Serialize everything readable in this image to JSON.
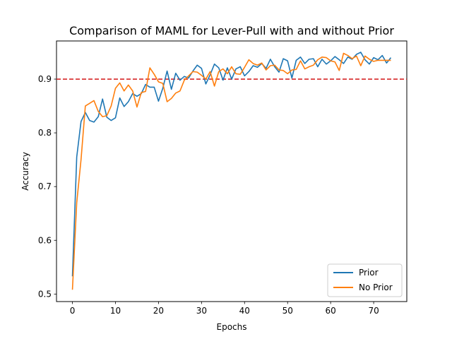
{
  "chart_data": {
    "type": "line",
    "title": "Comparison of MAML for Lever-Pull with and without Prior",
    "xlabel": "Epochs",
    "ylabel": "Accuracy",
    "xlim": [
      -3.7,
      77.7
    ],
    "ylim": [
      0.486,
      0.971
    ],
    "xticks": [
      0,
      10,
      20,
      30,
      40,
      50,
      60,
      70
    ],
    "yticks": [
      0.5,
      0.6,
      0.7,
      0.8,
      0.9
    ],
    "ytick_labels": [
      "0.5",
      "0.6",
      "0.7",
      "0.8",
      "0.9"
    ],
    "grid": false,
    "legend_position": "lower-right",
    "reference_line": {
      "y": 0.9,
      "color": "#d62728",
      "style": "dashed"
    },
    "x": [
      0,
      1,
      2,
      3,
      4,
      5,
      6,
      7,
      8,
      9,
      10,
      11,
      12,
      13,
      14,
      15,
      16,
      17,
      18,
      19,
      20,
      21,
      22,
      23,
      24,
      25,
      26,
      27,
      28,
      29,
      30,
      31,
      32,
      33,
      34,
      35,
      36,
      37,
      38,
      39,
      40,
      41,
      42,
      43,
      44,
      45,
      46,
      47,
      48,
      49,
      50,
      51,
      52,
      53,
      54,
      55,
      56,
      57,
      58,
      59,
      60,
      61,
      62,
      63,
      64,
      65,
      66,
      67,
      68,
      69,
      70,
      71,
      72,
      73,
      74
    ],
    "series": [
      {
        "name": "Prior",
        "color": "#1f77b4",
        "values": [
          0.533,
          0.755,
          0.821,
          0.838,
          0.823,
          0.82,
          0.83,
          0.863,
          0.829,
          0.823,
          0.828,
          0.865,
          0.849,
          0.858,
          0.873,
          0.868,
          0.873,
          0.89,
          0.885,
          0.885,
          0.859,
          0.883,
          0.915,
          0.881,
          0.911,
          0.898,
          0.905,
          0.902,
          0.915,
          0.926,
          0.92,
          0.891,
          0.908,
          0.928,
          0.921,
          0.898,
          0.921,
          0.9,
          0.919,
          0.923,
          0.906,
          0.914,
          0.925,
          0.922,
          0.929,
          0.92,
          0.937,
          0.923,
          0.913,
          0.938,
          0.934,
          0.902,
          0.935,
          0.941,
          0.929,
          0.937,
          0.938,
          0.923,
          0.937,
          0.928,
          0.934,
          0.942,
          0.936,
          0.929,
          0.941,
          0.937,
          0.946,
          0.95,
          0.936,
          0.928,
          0.94,
          0.936,
          0.944,
          0.93,
          0.94
        ]
      },
      {
        "name": "No Prior",
        "color": "#ff7f0e",
        "values": [
          0.508,
          0.67,
          0.75,
          0.85,
          0.855,
          0.86,
          0.84,
          0.83,
          0.832,
          0.85,
          0.883,
          0.893,
          0.878,
          0.889,
          0.878,
          0.848,
          0.875,
          0.877,
          0.921,
          0.909,
          0.895,
          0.892,
          0.858,
          0.864,
          0.874,
          0.878,
          0.898,
          0.906,
          0.914,
          0.913,
          0.907,
          0.9,
          0.914,
          0.887,
          0.914,
          0.919,
          0.91,
          0.923,
          0.91,
          0.909,
          0.922,
          0.936,
          0.929,
          0.926,
          0.93,
          0.917,
          0.925,
          0.926,
          0.917,
          0.916,
          0.91,
          0.917,
          0.918,
          0.934,
          0.919,
          0.923,
          0.926,
          0.936,
          0.941,
          0.94,
          0.934,
          0.932,
          0.916,
          0.948,
          0.944,
          0.938,
          0.943,
          0.925,
          0.943,
          0.937,
          0.933,
          0.935,
          0.935,
          0.935,
          0.935
        ]
      }
    ]
  }
}
